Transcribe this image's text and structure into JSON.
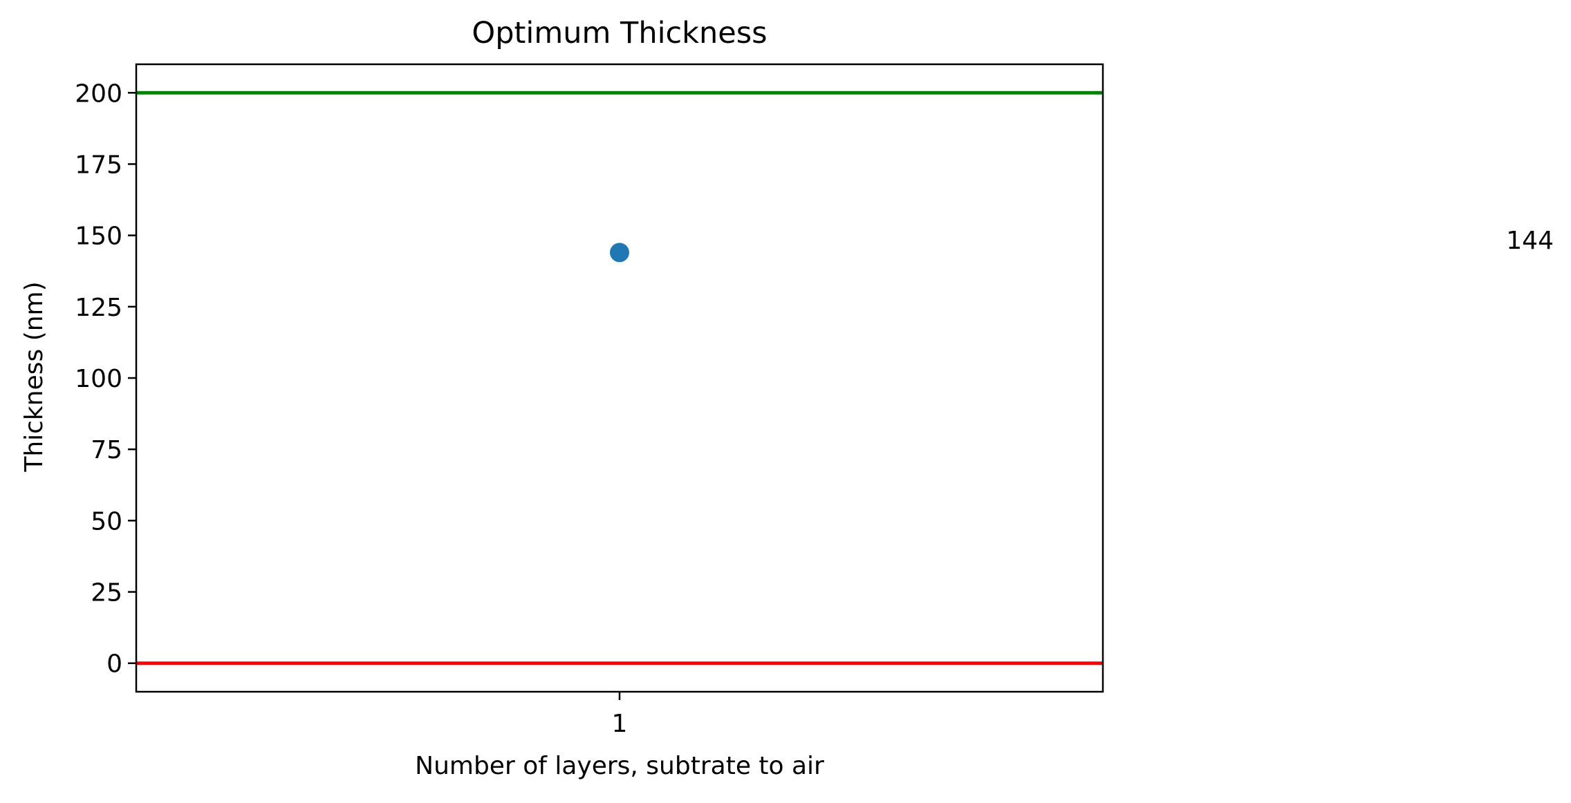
{
  "chart_data": {
    "type": "scatter",
    "title": "Optimum Thickness",
    "xlabel": "Number of layers, subtrate to air",
    "ylabel": "Thickness (nm)",
    "xlim": [
      0.5,
      1.5
    ],
    "ylim": [
      -10,
      210
    ],
    "x_ticks": [
      1
    ],
    "x_tick_labels": [
      "1"
    ],
    "y_ticks": [
      0,
      25,
      50,
      75,
      100,
      125,
      150,
      175,
      200
    ],
    "y_tick_labels": [
      "0",
      "25",
      "50",
      "75",
      "100",
      "125",
      "150",
      "175",
      "200"
    ],
    "grid": false,
    "legend": "none",
    "series": [
      {
        "x": [
          1
        ],
        "y": [
          144
        ],
        "color": "#1f77b4"
      }
    ],
    "reference_lines": [
      {
        "y": 200,
        "color": "#008000"
      },
      {
        "y": 0,
        "color": "#ff0000"
      }
    ],
    "annotations": [
      {
        "text": "144"
      }
    ]
  }
}
